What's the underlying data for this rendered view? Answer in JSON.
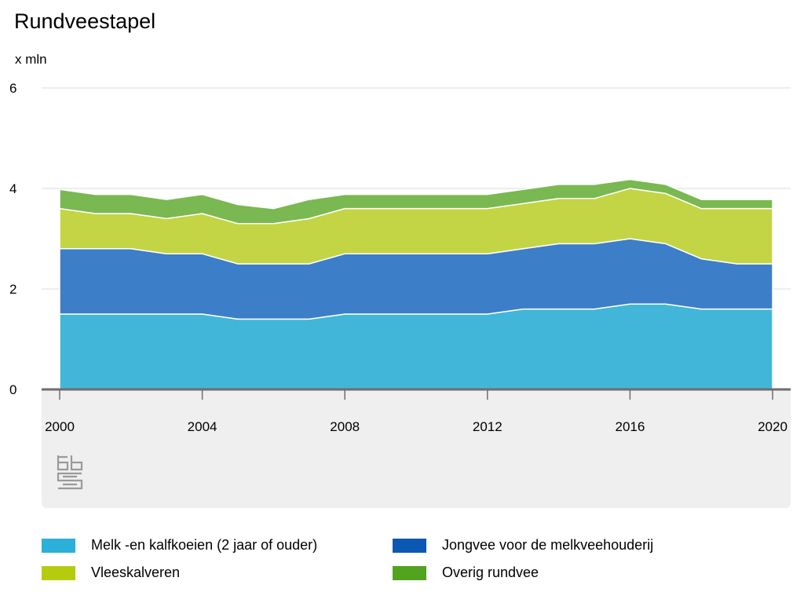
{
  "chart_data": {
    "type": "area",
    "stacked": true,
    "title": "Rundveestapel",
    "unit_label": "x mln",
    "ylim": [
      0,
      6
    ],
    "yticks": [
      0,
      2,
      4,
      6
    ],
    "xticks": [
      2000,
      2004,
      2008,
      2012,
      2016,
      2020
    ],
    "x": [
      2000,
      2001,
      2002,
      2003,
      2004,
      2005,
      2006,
      2007,
      2008,
      2009,
      2010,
      2011,
      2012,
      2013,
      2014,
      2015,
      2016,
      2017,
      2018,
      2019,
      2020
    ],
    "grid": true,
    "legend_position": "bottom",
    "series": [
      {
        "name": "Melk -en kalfkoeien (2 jaar of ouder)",
        "color": "#42b6d8",
        "values": [
          1.5,
          1.5,
          1.5,
          1.5,
          1.5,
          1.4,
          1.4,
          1.4,
          1.5,
          1.5,
          1.5,
          1.5,
          1.5,
          1.6,
          1.6,
          1.6,
          1.7,
          1.7,
          1.6,
          1.6,
          1.6
        ]
      },
      {
        "name": "Jongvee voor de melkveehouderij",
        "color": "#3d7ec8",
        "values": [
          1.3,
          1.3,
          1.3,
          1.2,
          1.2,
          1.1,
          1.1,
          1.1,
          1.2,
          1.2,
          1.2,
          1.2,
          1.2,
          1.2,
          1.3,
          1.3,
          1.3,
          1.2,
          1.0,
          0.9,
          0.9
        ]
      },
      {
        "name": "Vleeskalveren",
        "color": "#c3d545",
        "values": [
          0.8,
          0.7,
          0.7,
          0.7,
          0.8,
          0.8,
          0.8,
          0.9,
          0.9,
          0.9,
          0.9,
          0.9,
          0.9,
          0.9,
          0.9,
          0.9,
          1.0,
          1.0,
          1.0,
          1.1,
          1.1
        ]
      },
      {
        "name": "Overig rundvee",
        "color": "#7ab852",
        "values": [
          0.38,
          0.38,
          0.38,
          0.38,
          0.38,
          0.38,
          0.3,
          0.38,
          0.28,
          0.28,
          0.28,
          0.28,
          0.28,
          0.28,
          0.28,
          0.28,
          0.18,
          0.18,
          0.18,
          0.18,
          0.18
        ]
      }
    ],
    "legend_swatch_colors": [
      "#2ab0d9",
      "#0b58b2",
      "#b5cb0e",
      "#52a31e"
    ]
  }
}
